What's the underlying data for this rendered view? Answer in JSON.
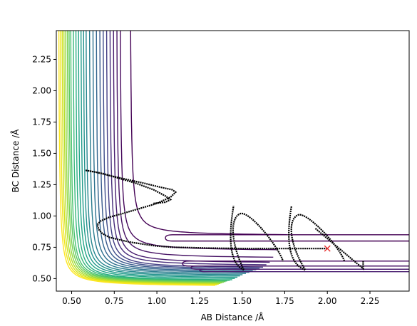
{
  "chart_data": {
    "type": "contour",
    "title": "",
    "xlabel": "AB Distance /Å",
    "ylabel": "BC Distance /Å",
    "xlim": [
      0.41,
      2.48
    ],
    "ylim": [
      0.4,
      2.48
    ],
    "xticks": [
      0.5,
      0.75,
      1.0,
      1.25,
      1.5,
      1.75,
      2.0,
      2.25
    ],
    "xtick_labels": [
      "0.50",
      "0.75",
      "1.00",
      "1.25",
      "1.50",
      "1.75",
      "2.00",
      "2.25"
    ],
    "yticks": [
      0.5,
      0.75,
      1.0,
      1.25,
      1.5,
      1.75,
      2.0,
      2.25
    ],
    "ytick_labels": [
      "0.50",
      "0.75",
      "1.00",
      "1.25",
      "1.50",
      "1.75",
      "2.00",
      "2.25"
    ],
    "grid": false,
    "colormap": "viridis",
    "contour_levels": [
      {
        "corner": [
          0.84,
          0.84
        ],
        "asymptote_x": 0.84,
        "asymptote_y": 0.84,
        "color": "#440154"
      },
      {
        "corner": [
          0.76,
          0.72
        ],
        "asymptote_x": 0.78,
        "asymptote_y": 0.72,
        "color": "#46085c"
      },
      {
        "corner": [
          0.9,
          0.66
        ],
        "asymptote_x": 0.76,
        "asymptote_y": 0.66,
        "color": "#471365"
      },
      {
        "corner": [
          0.95,
          0.62
        ],
        "asymptote_x": 0.74,
        "asymptote_y": 0.62,
        "color": "#481d6f"
      },
      {
        "corner": [
          1.0,
          0.6
        ],
        "asymptote_x": 0.72,
        "asymptote_y": 0.6,
        "color": "#472c7a"
      },
      {
        "corner": [
          1.05,
          0.58
        ],
        "asymptote_x": 0.7,
        "asymptote_y": 0.58,
        "color": "#433e85"
      },
      {
        "corner": [
          1.1,
          0.57
        ],
        "asymptote_x": 0.68,
        "asymptote_y": 0.57,
        "color": "#3e4c8a"
      },
      {
        "corner": [
          1.16,
          0.56
        ],
        "asymptote_x": 0.66,
        "asymptote_y": 0.56,
        "color": "#38598c"
      },
      {
        "corner": [
          1.22,
          0.55
        ],
        "asymptote_x": 0.64,
        "asymptote_y": 0.55,
        "color": "#32648e"
      },
      {
        "corner": [
          1.29,
          0.54
        ],
        "asymptote_x": 0.62,
        "asymptote_y": 0.54,
        "color": "#2d708e"
      },
      {
        "corner": [
          1.36,
          0.53
        ],
        "asymptote_x": 0.6,
        "asymptote_y": 0.53,
        "color": "#297b8e"
      },
      {
        "corner": [
          1.44,
          0.52
        ],
        "asymptote_x": 0.58,
        "asymptote_y": 0.52,
        "color": "#25858e"
      },
      {
        "corner": [
          1.52,
          0.51
        ],
        "asymptote_x": 0.565,
        "asymptote_y": 0.51,
        "color": "#21918c"
      },
      {
        "corner": [
          1.61,
          0.5
        ],
        "asymptote_x": 0.55,
        "asymptote_y": 0.5,
        "color": "#1f9a8a"
      },
      {
        "corner": [
          1.7,
          0.49
        ],
        "asymptote_x": 0.535,
        "asymptote_y": 0.49,
        "color": "#20a486"
      },
      {
        "corner": [
          1.8,
          0.48
        ],
        "asymptote_x": 0.52,
        "asymptote_y": 0.48,
        "color": "#27ad81"
      },
      {
        "corner": [
          1.91,
          0.475
        ],
        "asymptote_x": 0.505,
        "asymptote_y": 0.475,
        "color": "#35b779"
      },
      {
        "corner": [
          2.03,
          0.47
        ],
        "asymptote_x": 0.49,
        "asymptote_y": 0.47,
        "color": "#48c16e"
      },
      {
        "corner": [
          2.16,
          0.465
        ],
        "asymptote_x": 0.48,
        "asymptote_y": 0.465,
        "color": "#5ec962"
      },
      {
        "corner": [
          2.3,
          0.46
        ],
        "asymptote_x": 0.47,
        "asymptote_y": 0.46,
        "color": "#7ad151"
      },
      {
        "corner": [
          2.45,
          0.455
        ],
        "asymptote_x": 0.46,
        "asymptote_y": 0.455,
        "color": "#95d840"
      },
      {
        "corner": [
          2.62,
          0.45
        ],
        "asymptote_x": 0.45,
        "asymptote_y": 0.45,
        "color": "#b5de2b"
      },
      {
        "corner": [
          2.8,
          0.445
        ],
        "asymptote_x": 0.44,
        "asymptote_y": 0.445,
        "color": "#d2e21b"
      },
      {
        "corner": [
          3.0,
          0.44
        ],
        "asymptote_x": 0.43,
        "asymptote_y": 0.44,
        "color": "#f0e51c"
      },
      {
        "corner": [
          3.2,
          0.435
        ],
        "asymptote_x": 0.42,
        "asymptote_y": 0.435,
        "color": "#fde725"
      }
    ],
    "right_contours": [
      {
        "x_start": 1.05,
        "y_start": 0.8,
        "x_end": 2.48,
        "y_end": 0.85,
        "color": "#440154"
      },
      {
        "x_start": 1.15,
        "y_start": 0.6,
        "x_end": 2.48,
        "y_end": 0.64,
        "color": "#46085c"
      },
      {
        "x_start": 1.2,
        "y_start": 0.575,
        "x_end": 2.48,
        "y_end": 0.6,
        "color": "#471365"
      },
      {
        "x_start": 1.25,
        "y_start": 0.555,
        "x_end": 2.48,
        "y_end": 0.575,
        "color": "#481d6f"
      }
    ],
    "trajectory": {
      "name": "",
      "color": "#000000",
      "points": [
        [
          2.0,
          0.74
        ],
        [
          1.9,
          0.74
        ],
        [
          1.8,
          0.74
        ],
        [
          1.7,
          0.74
        ],
        [
          1.6,
          0.74
        ],
        [
          1.5,
          0.74
        ],
        [
          1.4,
          0.742
        ],
        [
          1.3,
          0.744
        ],
        [
          1.2,
          0.747
        ],
        [
          1.1,
          0.75
        ],
        [
          1.0,
          0.76
        ],
        [
          0.92,
          0.775
        ],
        [
          0.85,
          0.79
        ],
        [
          0.78,
          0.81
        ],
        [
          0.72,
          0.83
        ],
        [
          0.68,
          0.86
        ],
        [
          0.66,
          0.89
        ],
        [
          0.65,
          0.93
        ],
        [
          0.67,
          0.96
        ],
        [
          0.72,
          0.99
        ],
        [
          0.8,
          1.02
        ],
        [
          0.9,
          1.06
        ],
        [
          1.0,
          1.1
        ],
        [
          1.08,
          1.15
        ],
        [
          1.11,
          1.19
        ],
        [
          1.09,
          1.21
        ],
        [
          1.02,
          1.23
        ],
        [
          0.93,
          1.26
        ],
        [
          0.83,
          1.29
        ],
        [
          0.73,
          1.32
        ],
        [
          0.64,
          1.35
        ],
        [
          0.58,
          1.365
        ],
        [
          0.6,
          1.36
        ],
        [
          0.68,
          1.34
        ],
        [
          0.78,
          1.3
        ],
        [
          0.88,
          1.26
        ],
        [
          0.98,
          1.21
        ],
        [
          1.05,
          1.16
        ],
        [
          1.08,
          1.13
        ],
        [
          1.05,
          1.11
        ],
        [
          0.98,
          1.1
        ]
      ],
      "oscillation_loops": [
        {
          "x_center": 1.49,
          "x_left": 1.45,
          "x_right": 1.51,
          "y_top": 1.02,
          "y_bottom": 0.57
        },
        {
          "x_center": 1.83,
          "x_left": 1.79,
          "x_right": 1.87,
          "y_top": 1.01,
          "y_bottom": 0.57
        },
        {
          "x_right_end": 2.21,
          "y_bottom": 0.58,
          "y_top": 0.64
        }
      ]
    },
    "marker": {
      "x": 2.0,
      "y": 0.74,
      "symbol": "x",
      "color": "#e8312f"
    }
  }
}
